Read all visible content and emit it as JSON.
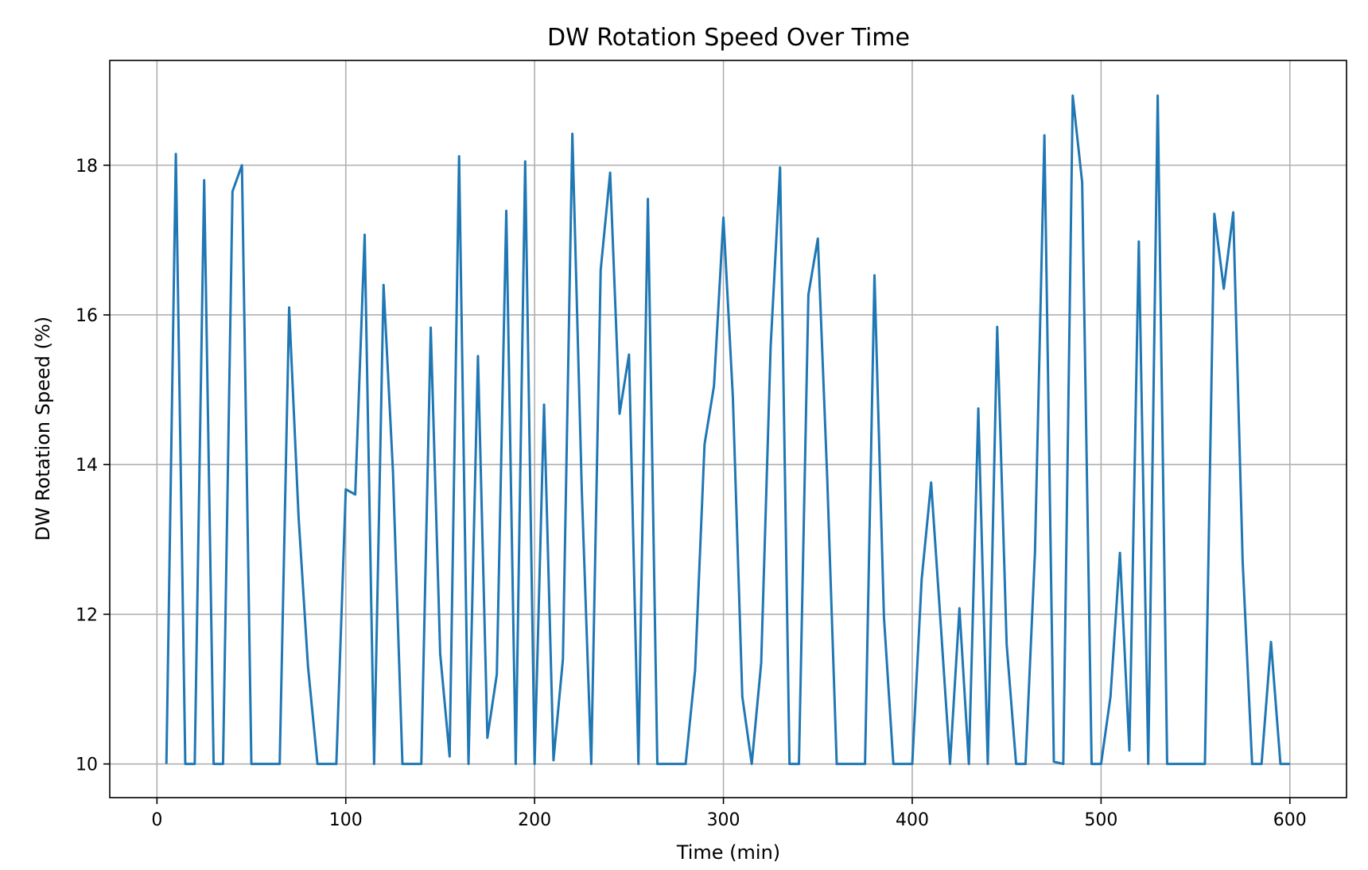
{
  "chart_data": {
    "type": "line",
    "title": "DW Rotation Speed Over Time",
    "xlabel": "Time (min)",
    "ylabel": "DW Rotation Speed (%)",
    "xlim": [
      -25,
      630
    ],
    "ylim": [
      9.55,
      19.4
    ],
    "xticks": [
      0,
      100,
      200,
      300,
      400,
      500,
      600
    ],
    "yticks": [
      10,
      12,
      14,
      16,
      18
    ],
    "grid": true,
    "colors": {
      "series": "#1f77b4"
    },
    "series": [
      {
        "x": [
          5,
          10,
          15,
          20,
          25,
          30,
          35,
          40,
          45,
          50,
          55,
          60,
          65,
          70,
          75,
          80,
          85,
          90,
          95,
          100,
          105,
          110,
          115,
          120,
          125,
          130,
          135,
          140,
          145,
          150,
          155,
          160,
          165,
          170,
          175,
          180,
          185,
          190,
          195,
          200,
          205,
          210,
          215,
          220,
          225,
          230,
          235,
          240,
          245,
          250,
          255,
          260,
          265,
          270,
          275,
          280,
          285,
          290,
          295,
          300,
          305,
          310,
          315,
          320,
          325,
          330,
          335,
          340,
          345,
          350,
          355,
          360,
          365,
          370,
          375,
          380,
          385,
          390,
          395,
          400,
          405,
          410,
          415,
          420,
          425,
          430,
          435,
          440,
          445,
          450,
          455,
          460,
          465,
          470,
          475,
          480,
          485,
          490,
          495,
          500,
          505,
          510,
          515,
          520,
          525,
          530,
          535,
          540,
          545,
          550,
          555,
          560,
          565,
          570,
          575,
          580,
          585,
          590,
          595,
          600
        ],
        "y": [
          10,
          18.15,
          10,
          10,
          17.8,
          10,
          10,
          17.65,
          18,
          10,
          10,
          10,
          10,
          16.1,
          13.3,
          11.3,
          10,
          10,
          10,
          13.67,
          13.6,
          17.07,
          10,
          16.4,
          13.9,
          10,
          10,
          10,
          15.83,
          11.47,
          10.1,
          18.12,
          10,
          15.45,
          10.35,
          11.2,
          17.39,
          10,
          18.05,
          10,
          14.8,
          10.05,
          11.4,
          18.42,
          13.65,
          10,
          16.6,
          17.9,
          14.68,
          15.47,
          10,
          17.55,
          10,
          10,
          10,
          10,
          11.25,
          14.27,
          15.05,
          17.3,
          14.9,
          10.9,
          10,
          11.35,
          15.57,
          17.97,
          10,
          10,
          16.27,
          17.02,
          13.8,
          10,
          10,
          10,
          10,
          16.53,
          11.97,
          10,
          10,
          10,
          12.47,
          13.76,
          11.9,
          10,
          12.08,
          10,
          14.75,
          10,
          15.84,
          11.6,
          10,
          10,
          12.83,
          18.4,
          10.03,
          10,
          18.93,
          17.77,
          10,
          10,
          10.9,
          12.82,
          10.18,
          16.98,
          10,
          18.93,
          10,
          10,
          10,
          10,
          10,
          17.35,
          16.35,
          17.37,
          12.7,
          10,
          10,
          11.63,
          10,
          10
        ]
      }
    ]
  }
}
